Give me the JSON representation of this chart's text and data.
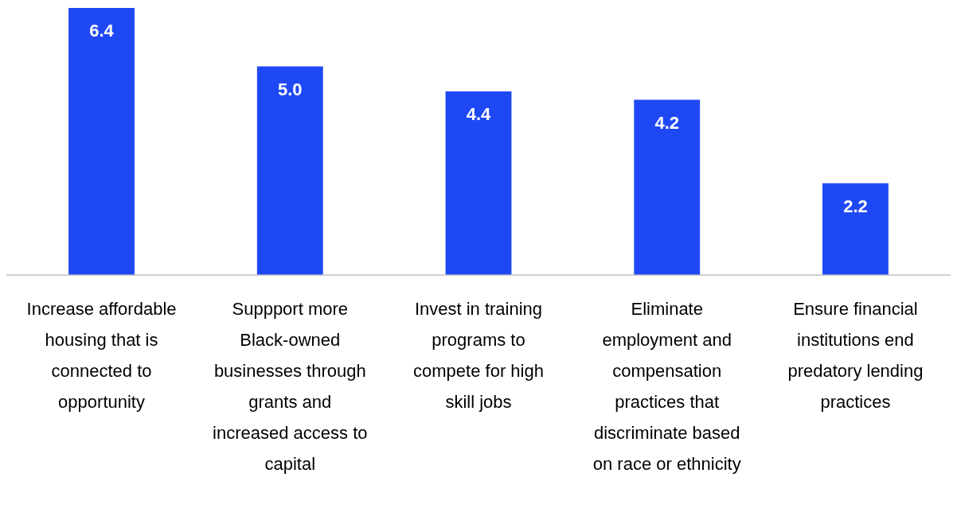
{
  "chart_data": {
    "type": "bar",
    "categories": [
      "Increase affordable housing that is connected to opportunity",
      "Suppport more Black-owned businesses through grants and increased access to capital",
      "Invest in training programs to compete for high skill jobs",
      "Eliminate employment and compensation practices that discriminate based on race or ethnicity",
      "Ensure financial institutions end predatory lending practices"
    ],
    "values": [
      6.4,
      5.0,
      4.4,
      4.2,
      2.2
    ],
    "value_labels": [
      "6.4",
      "5.0",
      "4.4",
      "4.2",
      "2.2"
    ],
    "color": "#1f48f5"
  }
}
